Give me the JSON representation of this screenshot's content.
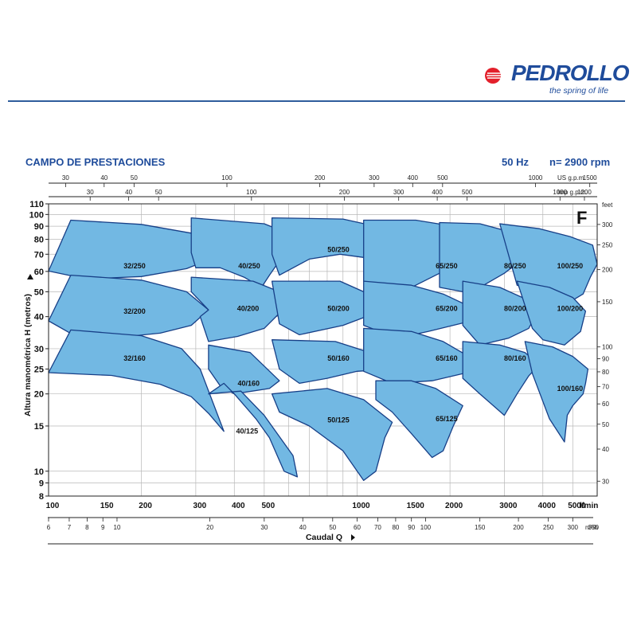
{
  "brand": {
    "name": "PEDROLLO",
    "tagline": "the spring of life"
  },
  "colors": {
    "region_fill": "#72b8e3",
    "region_stroke": "#173f87",
    "brand_blue": "#1f4c9b",
    "brand_red": "#e3202b",
    "grid": "#b8b8b8"
  },
  "chart_data": {
    "type": "area",
    "title": "CAMPO DE PRESTACIONES",
    "frequency": "50 Hz",
    "speed": "n= 2900 rpm",
    "series_code": "F",
    "ylabel": "Altura manométrica H (metros)",
    "xlabel": "Caudal Q",
    "x_unit": "l/min",
    "x_unit_m3h": "m³/h",
    "x_scale": "log",
    "y_scale": "log",
    "xlim": [
      100,
      6000
    ],
    "ylim": [
      8,
      110
    ],
    "grid": true,
    "x_ticks": [
      100,
      150,
      200,
      300,
      400,
      500,
      1000,
      1500,
      2000,
      3000,
      4000,
      5000
    ],
    "x_tick_labels": [
      "100",
      "150",
      "200",
      "300",
      "400",
      "500",
      "1000",
      "1500",
      "2000",
      "3000",
      "4000",
      "5000"
    ],
    "x_grid": [
      100,
      200,
      300,
      400,
      500,
      600,
      700,
      800,
      900,
      1000,
      2000,
      3000,
      4000,
      5000,
      6000
    ],
    "y_ticks": [
      8,
      9,
      10,
      15,
      20,
      25,
      30,
      40,
      50,
      60,
      70,
      80,
      90,
      100,
      110
    ],
    "y_tick_labels": [
      "8",
      "9",
      "10",
      "15",
      "20",
      "25",
      "30",
      "40",
      "50",
      "60",
      "70",
      "80",
      "90",
      "100",
      "110"
    ],
    "y_grid": [
      8,
      9,
      10,
      15,
      20,
      25,
      30,
      40,
      50,
      60,
      70,
      80,
      90,
      100,
      110
    ],
    "m3h_ticks": [
      6,
      7,
      8,
      9,
      10,
      20,
      30,
      40,
      50,
      60,
      70,
      80,
      90,
      100,
      150,
      200,
      250,
      300,
      350
    ],
    "m3h_tick_labels": [
      "6",
      "7",
      "8",
      "9",
      "10",
      "20",
      "30",
      "40",
      "50",
      "60",
      "70",
      "80",
      "90",
      "100",
      "150",
      "200",
      "250",
      "300",
      "350"
    ],
    "usgpm_label": "US g.p.m.",
    "usgpm_ticks": [
      30,
      40,
      50,
      100,
      200,
      300,
      400,
      500,
      1000,
      1500
    ],
    "usgpm_tick_labels": [
      "30",
      "40",
      "50",
      "100",
      "200",
      "300",
      "400",
      "500",
      "1000",
      "1500"
    ],
    "impgpm_label": "Imp g.p.m.",
    "impgpm_ticks": [
      30,
      40,
      50,
      100,
      200,
      300,
      400,
      500,
      1000,
      1200
    ],
    "impgpm_tick_labels": [
      "30",
      "40",
      "50",
      "100",
      "200",
      "300",
      "400",
      "500",
      "1000",
      "1200"
    ],
    "feet_label": "feet",
    "feet_ticks": [
      30,
      40,
      50,
      60,
      70,
      80,
      90,
      100,
      150,
      200,
      250,
      300
    ],
    "feet_tick_labels": [
      "30",
      "40",
      "50",
      "60",
      "70",
      "80",
      "90",
      "100",
      "150",
      "200",
      "250",
      "300"
    ],
    "regions": [
      {
        "name": "32/250",
        "label": "32/250",
        "outline": [
          [
            100,
            60.2
          ],
          [
            118,
            95
          ],
          [
            200,
            91.5
          ],
          [
            300,
            84
          ],
          [
            360,
            73
          ],
          [
            340,
            67.5
          ],
          [
            280,
            61.5
          ],
          [
            200,
            57.3
          ],
          [
            130,
            56
          ],
          [
            118,
            57.7
          ]
        ],
        "label_at": [
          190,
          63
        ]
      },
      {
        "name": "32/200",
        "label": "32/200",
        "outline": [
          [
            100,
            38.5
          ],
          [
            118,
            58
          ],
          [
            200,
            55.5
          ],
          [
            280,
            50
          ],
          [
            330,
            42.5
          ],
          [
            290,
            37
          ],
          [
            230,
            34.5
          ],
          [
            160,
            33
          ],
          [
            118,
            34.4
          ]
        ],
        "label_at": [
          190,
          42
        ]
      },
      {
        "name": "32/160",
        "label": "32/160",
        "outline": [
          [
            100,
            24.2
          ],
          [
            118,
            35.5
          ],
          [
            200,
            33.7
          ],
          [
            270,
            30
          ],
          [
            310,
            25
          ],
          [
            370,
            14.3
          ],
          [
            330,
            16.8
          ],
          [
            290,
            19.5
          ],
          [
            230,
            21.8
          ],
          [
            160,
            23.6
          ]
        ],
        "label_at": [
          190,
          27.5
        ]
      },
      {
        "name": "40/250",
        "label": "40/250",
        "outline": [
          [
            290,
            97
          ],
          [
            500,
            92
          ],
          [
            650,
            81
          ],
          [
            580,
            70
          ],
          [
            520,
            58
          ],
          [
            490,
            52
          ],
          [
            430,
            57
          ],
          [
            360,
            62
          ],
          [
            300,
            62
          ],
          [
            290,
            71
          ]
        ],
        "label_at": [
          447,
          63
        ]
      },
      {
        "name": "40/200",
        "label": "40/200",
        "outline": [
          [
            290,
            57
          ],
          [
            460,
            55
          ],
          [
            560,
            50
          ],
          [
            580,
            43
          ],
          [
            500,
            36
          ],
          [
            410,
            33.5
          ],
          [
            330,
            32
          ],
          [
            310,
            40
          ],
          [
            330,
            42.5
          ],
          [
            290,
            50
          ]
        ],
        "label_at": [
          443,
          43
        ]
      },
      {
        "name": "40/160",
        "label": "40/160",
        "outline": [
          [
            330,
            31
          ],
          [
            450,
            29
          ],
          [
            560,
            22.5
          ],
          [
            520,
            21
          ],
          [
            400,
            20
          ],
          [
            360,
            21.5
          ],
          [
            330,
            25
          ]
        ],
        "label_at": [
          445,
          22
        ]
      },
      {
        "name": "40/125",
        "label": "40/125",
        "outline": [
          [
            330,
            20
          ],
          [
            420,
            20.5
          ],
          [
            500,
            16.5
          ],
          [
            620,
            11.5
          ],
          [
            640,
            9.5
          ],
          [
            580,
            10
          ],
          [
            560,
            11
          ],
          [
            520,
            13.5
          ],
          [
            470,
            16
          ],
          [
            400,
            20
          ],
          [
            370,
            22
          ]
        ],
        "label_at": [
          440,
          14.3
        ]
      },
      {
        "name": "50/250",
        "label": "50/250",
        "outline": [
          [
            530,
            97
          ],
          [
            900,
            96
          ],
          [
            1300,
            87
          ],
          [
            1450,
            75
          ],
          [
            1200,
            67
          ],
          [
            1050,
            68
          ],
          [
            880,
            70
          ],
          [
            700,
            67
          ],
          [
            560,
            58
          ],
          [
            530,
            70
          ]
        ],
        "label_at": [
          870,
          73
        ]
      },
      {
        "name": "50/200",
        "label": "50/200",
        "outline": [
          [
            530,
            55
          ],
          [
            880,
            55
          ],
          [
            1050,
            50
          ],
          [
            1250,
            44
          ],
          [
            1100,
            40.5
          ],
          [
            900,
            37
          ],
          [
            650,
            34
          ],
          [
            560,
            37.5
          ]
        ],
        "label_at": [
          870,
          43
        ]
      },
      {
        "name": "50/160",
        "label": "50/160",
        "outline": [
          [
            530,
            32.5
          ],
          [
            850,
            32
          ],
          [
            1100,
            29
          ],
          [
            1300,
            25
          ],
          [
            1000,
            24.5
          ],
          [
            800,
            23
          ],
          [
            650,
            22
          ],
          [
            560,
            25
          ]
        ],
        "label_at": [
          870,
          27.5
        ]
      },
      {
        "name": "50/125",
        "label": "50/125",
        "outline": [
          [
            530,
            20
          ],
          [
            800,
            21
          ],
          [
            1050,
            19
          ],
          [
            1300,
            15.5
          ],
          [
            1230,
            13.5
          ],
          [
            1150,
            10
          ],
          [
            1050,
            9.2
          ],
          [
            900,
            12
          ],
          [
            700,
            15
          ],
          [
            560,
            17
          ]
        ],
        "label_at": [
          870,
          15.8
        ]
      },
      {
        "name": "65/250",
        "label": "65/250",
        "outline": [
          [
            1050,
            95
          ],
          [
            1550,
            95
          ],
          [
            2050,
            90
          ],
          [
            2300,
            78
          ],
          [
            2300,
            64
          ],
          [
            1900,
            60
          ],
          [
            1500,
            52
          ],
          [
            1250,
            50
          ],
          [
            1050,
            55
          ]
        ],
        "label_at": [
          1950,
          63
        ]
      },
      {
        "name": "65/200",
        "label": "65/200",
        "outline": [
          [
            1050,
            55
          ],
          [
            1500,
            53
          ],
          [
            1900,
            49
          ],
          [
            2300,
            44
          ],
          [
            2250,
            38
          ],
          [
            1700,
            35
          ],
          [
            1350,
            33
          ],
          [
            1050,
            37
          ]
        ],
        "label_at": [
          1950,
          43
        ]
      },
      {
        "name": "65/160",
        "label": "65/160",
        "outline": [
          [
            1050,
            36
          ],
          [
            1500,
            35
          ],
          [
            1900,
            32
          ],
          [
            2300,
            28
          ],
          [
            2200,
            24
          ],
          [
            1750,
            22.5
          ],
          [
            1300,
            22
          ],
          [
            1050,
            24.5
          ]
        ],
        "label_at": [
          1950,
          27.5
        ]
      },
      {
        "name": "65/125",
        "label": "65/125",
        "outline": [
          [
            1150,
            22.5
          ],
          [
            1500,
            22.5
          ],
          [
            1800,
            21
          ],
          [
            2200,
            18
          ],
          [
            2050,
            15
          ],
          [
            1900,
            12
          ],
          [
            1750,
            11.3
          ],
          [
            1500,
            14
          ],
          [
            1300,
            17
          ],
          [
            1150,
            19
          ]
        ],
        "label_at": [
          1950,
          16
        ]
      },
      {
        "name": "80/250",
        "label": "80/250",
        "outline": [
          [
            1850,
            93
          ],
          [
            2500,
            92
          ],
          [
            3200,
            85
          ],
          [
            3800,
            77
          ],
          [
            3450,
            67
          ],
          [
            3000,
            59
          ],
          [
            2500,
            52
          ],
          [
            2200,
            50
          ],
          [
            1850,
            52
          ]
        ],
        "label_at": [
          3250,
          63
        ]
      },
      {
        "name": "80/200",
        "label": "80/200",
        "outline": [
          [
            2200,
            55
          ],
          [
            2900,
            52
          ],
          [
            3500,
            47
          ],
          [
            3900,
            43
          ],
          [
            3600,
            36
          ],
          [
            3100,
            33
          ],
          [
            2500,
            31
          ],
          [
            2200,
            37
          ]
        ],
        "label_at": [
          3250,
          43
        ]
      },
      {
        "name": "80/160",
        "label": "80/160",
        "outline": [
          [
            2200,
            32
          ],
          [
            2900,
            31
          ],
          [
            3500,
            29
          ],
          [
            3900,
            26
          ],
          [
            3600,
            23.5
          ],
          [
            3300,
            20
          ],
          [
            3000,
            16.5
          ],
          [
            2500,
            20
          ],
          [
            2200,
            23
          ]
        ],
        "label_at": [
          3250,
          27.5
        ]
      },
      {
        "name": "100/250",
        "label": "100/250",
        "outline": [
          [
            2900,
            92
          ],
          [
            3900,
            88
          ],
          [
            4900,
            82
          ],
          [
            5800,
            76
          ],
          [
            6000,
            64
          ],
          [
            5700,
            57
          ],
          [
            5400,
            49
          ],
          [
            4800,
            45
          ],
          [
            3900,
            50
          ],
          [
            3300,
            53
          ]
        ],
        "label_at": [
          4900,
          63
        ]
      },
      {
        "name": "100/200",
        "label": "100/200",
        "outline": [
          [
            3300,
            55
          ],
          [
            4200,
            52
          ],
          [
            5000,
            47.5
          ],
          [
            5500,
            42
          ],
          [
            5300,
            35
          ],
          [
            4700,
            31
          ],
          [
            4000,
            32.5
          ],
          [
            3700,
            36
          ]
        ],
        "label_at": [
          4900,
          43
        ]
      },
      {
        "name": "100/160",
        "label": "100/160",
        "outline": [
          [
            3500,
            32
          ],
          [
            4300,
            30.5
          ],
          [
            5000,
            28
          ],
          [
            5600,
            25
          ],
          [
            5500,
            22
          ],
          [
            5400,
            20
          ],
          [
            5000,
            18
          ],
          [
            4800,
            16.5
          ],
          [
            4700,
            13
          ],
          [
            4200,
            16
          ],
          [
            3700,
            24
          ]
        ],
        "label_at": [
          4900,
          21
        ]
      }
    ]
  }
}
